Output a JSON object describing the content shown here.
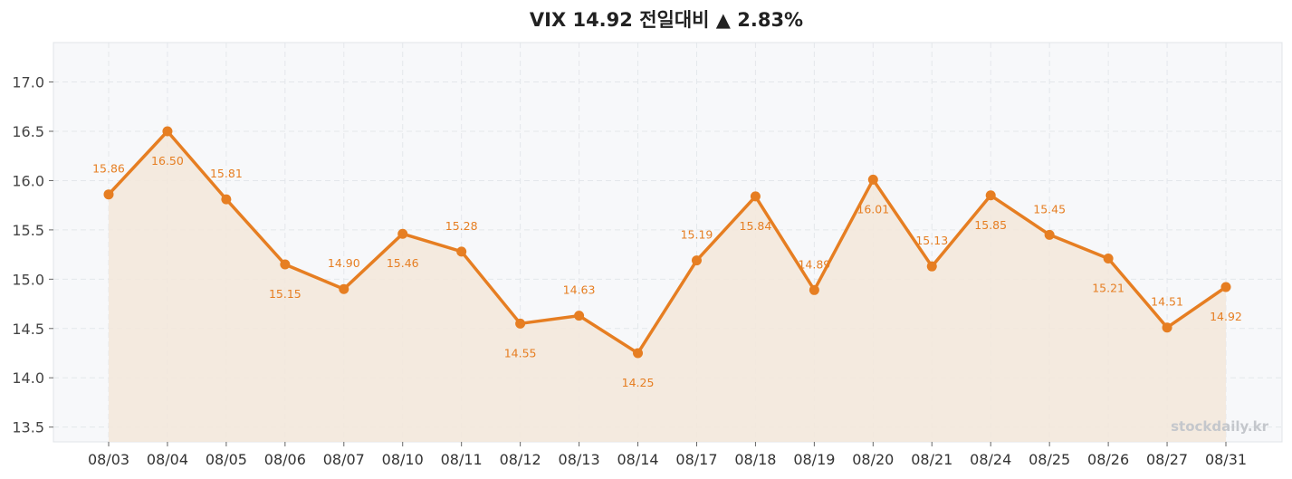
{
  "chart_data": {
    "type": "line",
    "title": "VIX 14.92 전일대비 ▲ 2.83%",
    "categories": [
      "08/03",
      "08/04",
      "08/05",
      "08/06",
      "08/07",
      "08/10",
      "08/11",
      "08/12",
      "08/13",
      "08/14",
      "08/17",
      "08/18",
      "08/19",
      "08/20",
      "08/21",
      "08/24",
      "08/25",
      "08/26",
      "08/27",
      "08/31"
    ],
    "values": [
      15.86,
      16.5,
      15.81,
      15.15,
      14.9,
      15.46,
      15.28,
      14.55,
      14.63,
      14.25,
      15.19,
      15.84,
      14.89,
      16.01,
      15.13,
      15.85,
      15.45,
      15.21,
      14.51,
      14.92
    ],
    "data_labels": [
      "15.86",
      "16.50",
      "15.81",
      "15.15",
      "14.90",
      "15.46",
      "15.28",
      "14.55",
      "14.63",
      "14.25",
      "15.19",
      "15.84",
      "14.89",
      "16.01",
      "15.13",
      "15.85",
      "15.45",
      "15.21",
      "14.51",
      "14.92"
    ],
    "label_placement": [
      "above",
      "below",
      "above",
      "below",
      "above",
      "below",
      "above",
      "below",
      "above",
      "below",
      "above",
      "below",
      "above",
      "below",
      "above",
      "below",
      "above",
      "below",
      "above",
      "below"
    ],
    "yticks": [
      "13.5",
      "14.0",
      "14.5",
      "15.0",
      "15.5",
      "16.0",
      "16.5",
      "17.0"
    ],
    "ytick_values": [
      13.5,
      14.0,
      14.5,
      15.0,
      15.5,
      16.0,
      16.5,
      17.0
    ],
    "ylim": [
      13.35,
      17.4
    ],
    "xlabel": "",
    "ylabel": "",
    "grid": true,
    "colors": {
      "line": "#e67e22",
      "fill": "#f3e8dc",
      "plot_bg": "#f7f8fa",
      "grid": "#e4e7eb"
    },
    "watermark": "stockdaily.kr"
  }
}
